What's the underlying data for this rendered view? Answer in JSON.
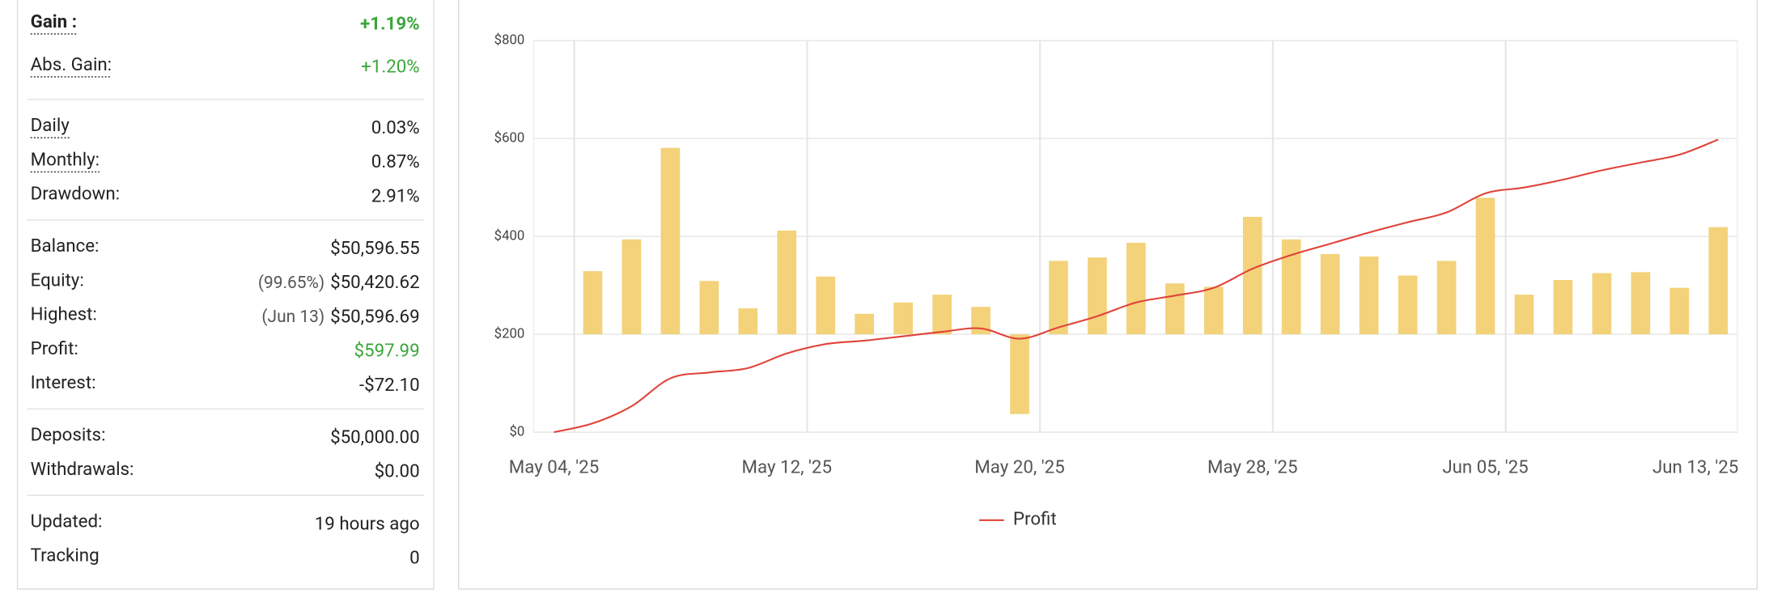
{
  "stats": {
    "groups": [
      [
        {
          "label": "Gain :",
          "value": "+1.19%",
          "color": "#3aa63a",
          "bold": true,
          "dotted": true
        },
        {
          "label": "Abs. Gain:",
          "value": "+1.20%",
          "color": "#3aa63a",
          "dotted": true
        }
      ],
      [
        {
          "label": "Daily",
          "value": "0.03%",
          "dotted": true
        },
        {
          "label": "Monthly:",
          "value": "0.87%",
          "dotted": true
        },
        {
          "label": "Drawdown:",
          "value": "2.91%"
        }
      ],
      [
        {
          "label": "Balance:",
          "value": "$50,596.55"
        },
        {
          "label": "Equity:",
          "value": "$50,420.62",
          "note": "(99.65%)"
        },
        {
          "label": "Highest:",
          "value": "$50,596.69",
          "note": "(Jun 13)"
        },
        {
          "label": "Profit:",
          "value": "$597.99",
          "color": "#3aa63a"
        },
        {
          "label": "Interest:",
          "value": "-$72.10"
        }
      ],
      [
        {
          "label": "Deposits:",
          "value": "$50,000.00"
        },
        {
          "label": "Withdrawals:",
          "value": "$0.00"
        }
      ],
      [
        {
          "label": "Updated:",
          "value": "19 hours ago"
        },
        {
          "label": "Tracking",
          "value": "0"
        }
      ]
    ]
  },
  "chart_data": {
    "type": "combo",
    "categories": [
      "May 04, '25",
      null,
      null,
      null,
      null,
      null,
      "May 12, '25",
      null,
      null,
      null,
      null,
      null,
      "May 20, '25",
      null,
      null,
      null,
      null,
      null,
      "May 28, '25",
      null,
      null,
      null,
      null,
      null,
      "Jun 05, '25",
      null,
      null,
      null,
      null,
      null,
      "Jun 13, '25"
    ],
    "series": [
      {
        "type": "bar",
        "color": "#f3d27a",
        "values": [
          null,
          329,
          394,
          581,
          309,
          253,
          412,
          318,
          242,
          265,
          281,
          256,
          37,
          350,
          357,
          387,
          304,
          297,
          440,
          394,
          364,
          359,
          320,
          350,
          479,
          281,
          311,
          325,
          327,
          295,
          419
        ]
      },
      {
        "type": "line",
        "name": "Profit",
        "color": "#e0433a",
        "values": [
          0,
          18,
          53,
          110,
          122,
          131,
          161,
          180,
          187,
          196,
          205,
          212,
          191,
          214,
          237,
          265,
          279,
          295,
          334,
          362,
          385,
          408,
          429,
          449,
          488,
          500,
          516,
          535,
          551,
          567,
          598
        ]
      }
    ],
    "bar_base": 200,
    "ylim": [
      0,
      800
    ],
    "yticks": [
      {
        "value": 0,
        "label": "$0"
      },
      {
        "value": 200,
        "label": "$200"
      },
      {
        "value": 400,
        "label": "$400"
      },
      {
        "value": 600,
        "label": "$600"
      },
      {
        "value": 800,
        "label": "$800"
      }
    ],
    "grid": true,
    "legend": "bottom"
  }
}
